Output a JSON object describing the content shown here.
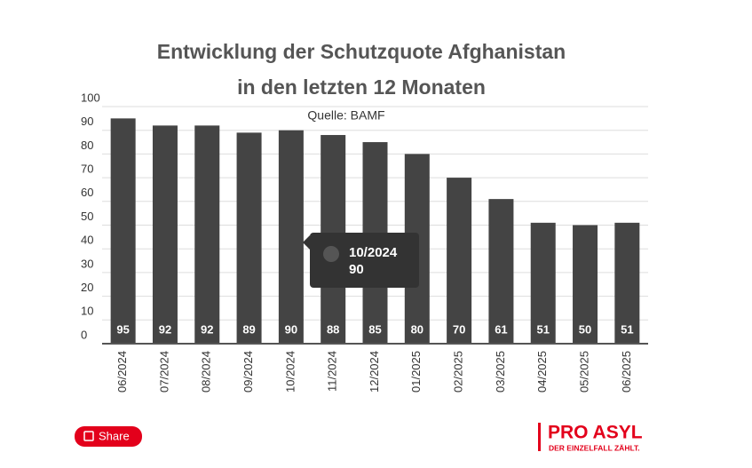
{
  "chart_data": {
    "type": "bar",
    "title_lines": [
      "Entwicklung der Schutzquote Afghanistan",
      "in den letzten 12 Monaten"
    ],
    "subtitle": "Quelle: BAMF",
    "categories": [
      "06/2024",
      "07/2024",
      "08/2024",
      "09/2024",
      "10/2024",
      "11/2024",
      "12/2024",
      "01/2025",
      "02/2025",
      "03/2025",
      "04/2025",
      "05/2025",
      "06/2025"
    ],
    "values": [
      95,
      92,
      92,
      89,
      90,
      88,
      85,
      80,
      70,
      61,
      51,
      50,
      51
    ],
    "color": "#444444",
    "ylim": [
      0,
      100
    ],
    "yticks": [
      0,
      10,
      20,
      30,
      40,
      50,
      60,
      70,
      80,
      90,
      100
    ],
    "grid": true,
    "tooltip_index": 4
  },
  "share": "Share",
  "logo": {
    "name": "PRO ASYL",
    "tagline": "DER EINZELFALL ZÄHLT."
  }
}
